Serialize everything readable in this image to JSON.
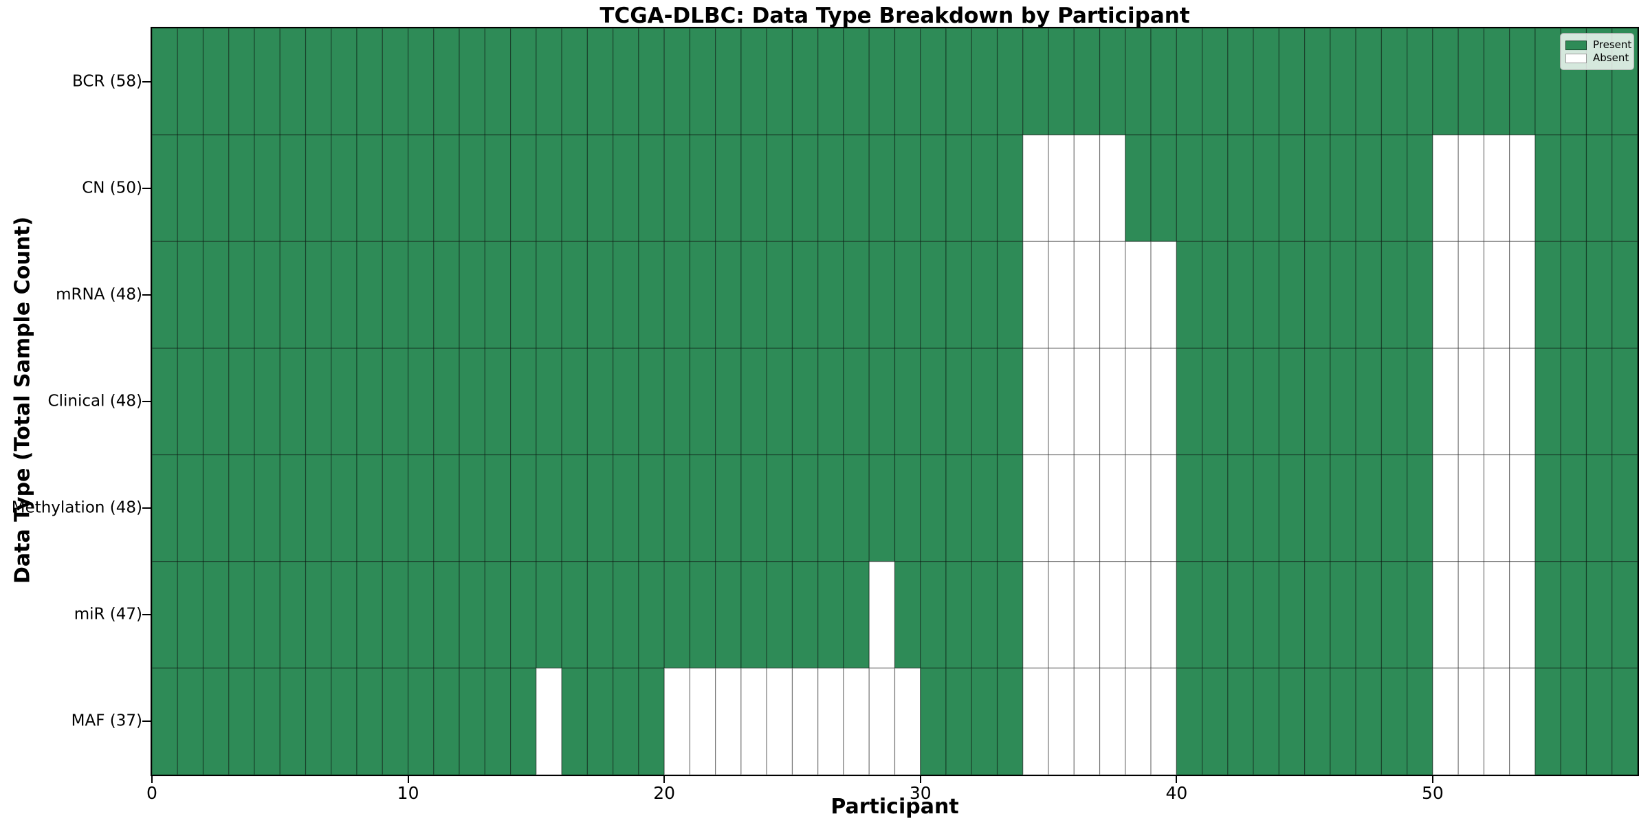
{
  "chart_data": {
    "type": "heatmap",
    "title": "TCGA-DLBC: Data Type Breakdown by Participant",
    "xlabel": "Participant",
    "ylabel": "Data Type (Total Sample Count)",
    "n_participants": 58,
    "x_ticks": [
      0,
      10,
      20,
      30,
      40,
      50
    ],
    "rows": [
      {
        "label": "BCR (58)",
        "present_count": 58,
        "absent_participants": []
      },
      {
        "label": "CN (50)",
        "present_count": 50,
        "absent_participants": [
          34,
          35,
          36,
          37,
          50,
          51,
          52,
          53
        ]
      },
      {
        "label": "mRNA (48)",
        "present_count": 48,
        "absent_participants": [
          34,
          35,
          36,
          37,
          38,
          39,
          50,
          51,
          52,
          53
        ]
      },
      {
        "label": "Clinical (48)",
        "present_count": 48,
        "absent_participants": [
          34,
          35,
          36,
          37,
          38,
          39,
          50,
          51,
          52,
          53
        ]
      },
      {
        "label": "Methylation (48)",
        "present_count": 48,
        "absent_participants": [
          34,
          35,
          36,
          37,
          38,
          39,
          50,
          51,
          52,
          53
        ]
      },
      {
        "label": "miR (47)",
        "present_count": 47,
        "absent_participants": [
          28,
          34,
          35,
          36,
          37,
          38,
          39,
          50,
          51,
          52,
          53
        ]
      },
      {
        "label": "MAF (37)",
        "present_count": 37,
        "absent_participants": [
          15,
          20,
          21,
          22,
          23,
          24,
          25,
          26,
          27,
          28,
          29,
          34,
          35,
          36,
          37,
          38,
          39,
          50,
          51,
          52,
          53
        ]
      }
    ],
    "legend": [
      {
        "label": "Present",
        "color": "#2e8b57"
      },
      {
        "label": "Absent",
        "color": "#ffffff"
      }
    ],
    "colors": {
      "present": "#2e8b57",
      "absent": "#ffffff",
      "cell_edge": "rgba(0,0,0,0.42)",
      "spine": "#000000"
    },
    "legend_position": "upper right",
    "grid": true
  }
}
